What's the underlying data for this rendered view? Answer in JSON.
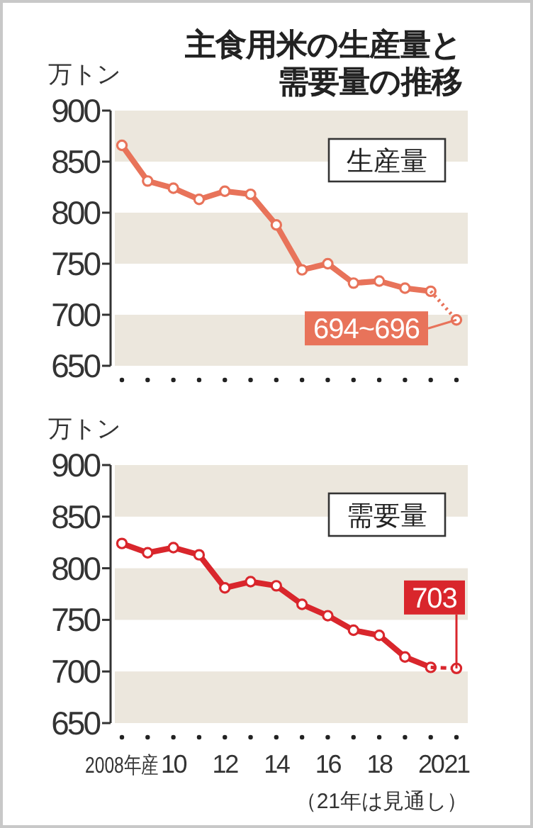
{
  "chart_data": [
    {
      "type": "line",
      "title": "主食用米の生産量と需要量の推移",
      "ylabel": "万トン",
      "categories": [
        null,
        null,
        null,
        null,
        null,
        null,
        null,
        null,
        null,
        null,
        null,
        null,
        null,
        null
      ],
      "tick_labels": "y",
      "ylim": [
        650,
        900
      ],
      "yticks": [
        650,
        700,
        750,
        800,
        850,
        900
      ],
      "grid": false,
      "marker": "circle",
      "bands": [
        {
          "axis": "y",
          "from": 650,
          "to": 700,
          "color": "#ece7dd"
        },
        {
          "axis": "y",
          "from": 750,
          "to": 800,
          "color": "#ece7dd"
        },
        {
          "axis": "y",
          "from": 850,
          "to": 900,
          "color": "#ece7dd"
        }
      ],
      "annotations": [
        "生産量",
        {
          "text": "694~696",
          "y": 695
        }
      ],
      "series": [
        {
          "color": "#e8735a",
          "line_style": "solid",
          "values": [
            866,
            831,
            824,
            813,
            821,
            818,
            788,
            744,
            750,
            731,
            733,
            726,
            723,
            null
          ]
        },
        {
          "color": "#e8735a",
          "line_style": "dotted",
          "values": [
            null,
            null,
            null,
            null,
            null,
            null,
            null,
            null,
            null,
            null,
            null,
            null,
            723,
            695
          ]
        }
      ]
    },
    {
      "type": "line",
      "ylabel": "万トン",
      "categories": [
        "2008年産",
        null,
        "10",
        null,
        "12",
        null,
        "14",
        null,
        "16",
        null,
        "18",
        null,
        "20",
        "21"
      ],
      "ylim": [
        650,
        900
      ],
      "yticks": [
        650,
        700,
        750,
        800,
        850,
        900
      ],
      "grid": false,
      "marker": "circle",
      "bands": [
        {
          "axis": "y",
          "from": 650,
          "to": 700,
          "color": "#ece7dd"
        },
        {
          "axis": "y",
          "from": 750,
          "to": 800,
          "color": "#ece7dd"
        },
        {
          "axis": "y",
          "from": 850,
          "to": 900,
          "color": "#ece7dd"
        }
      ],
      "annotations": [
        "需要量",
        "（21年は見通し）"
      ],
      "series": [
        {
          "color": "#d9262c",
          "line_style": "solid",
          "values": [
            824,
            815,
            820,
            813,
            781,
            787,
            783,
            765,
            754,
            740,
            735,
            714,
            704,
            null
          ]
        },
        {
          "color": "#d9262c",
          "line_style": "dashed",
          "values": [
            null,
            null,
            null,
            null,
            null,
            null,
            null,
            null,
            null,
            null,
            null,
            null,
            704,
            703
          ],
          "value_labels": [
            null,
            null,
            null,
            null,
            null,
            null,
            null,
            null,
            null,
            null,
            null,
            null,
            null,
            "703"
          ]
        }
      ]
    }
  ]
}
